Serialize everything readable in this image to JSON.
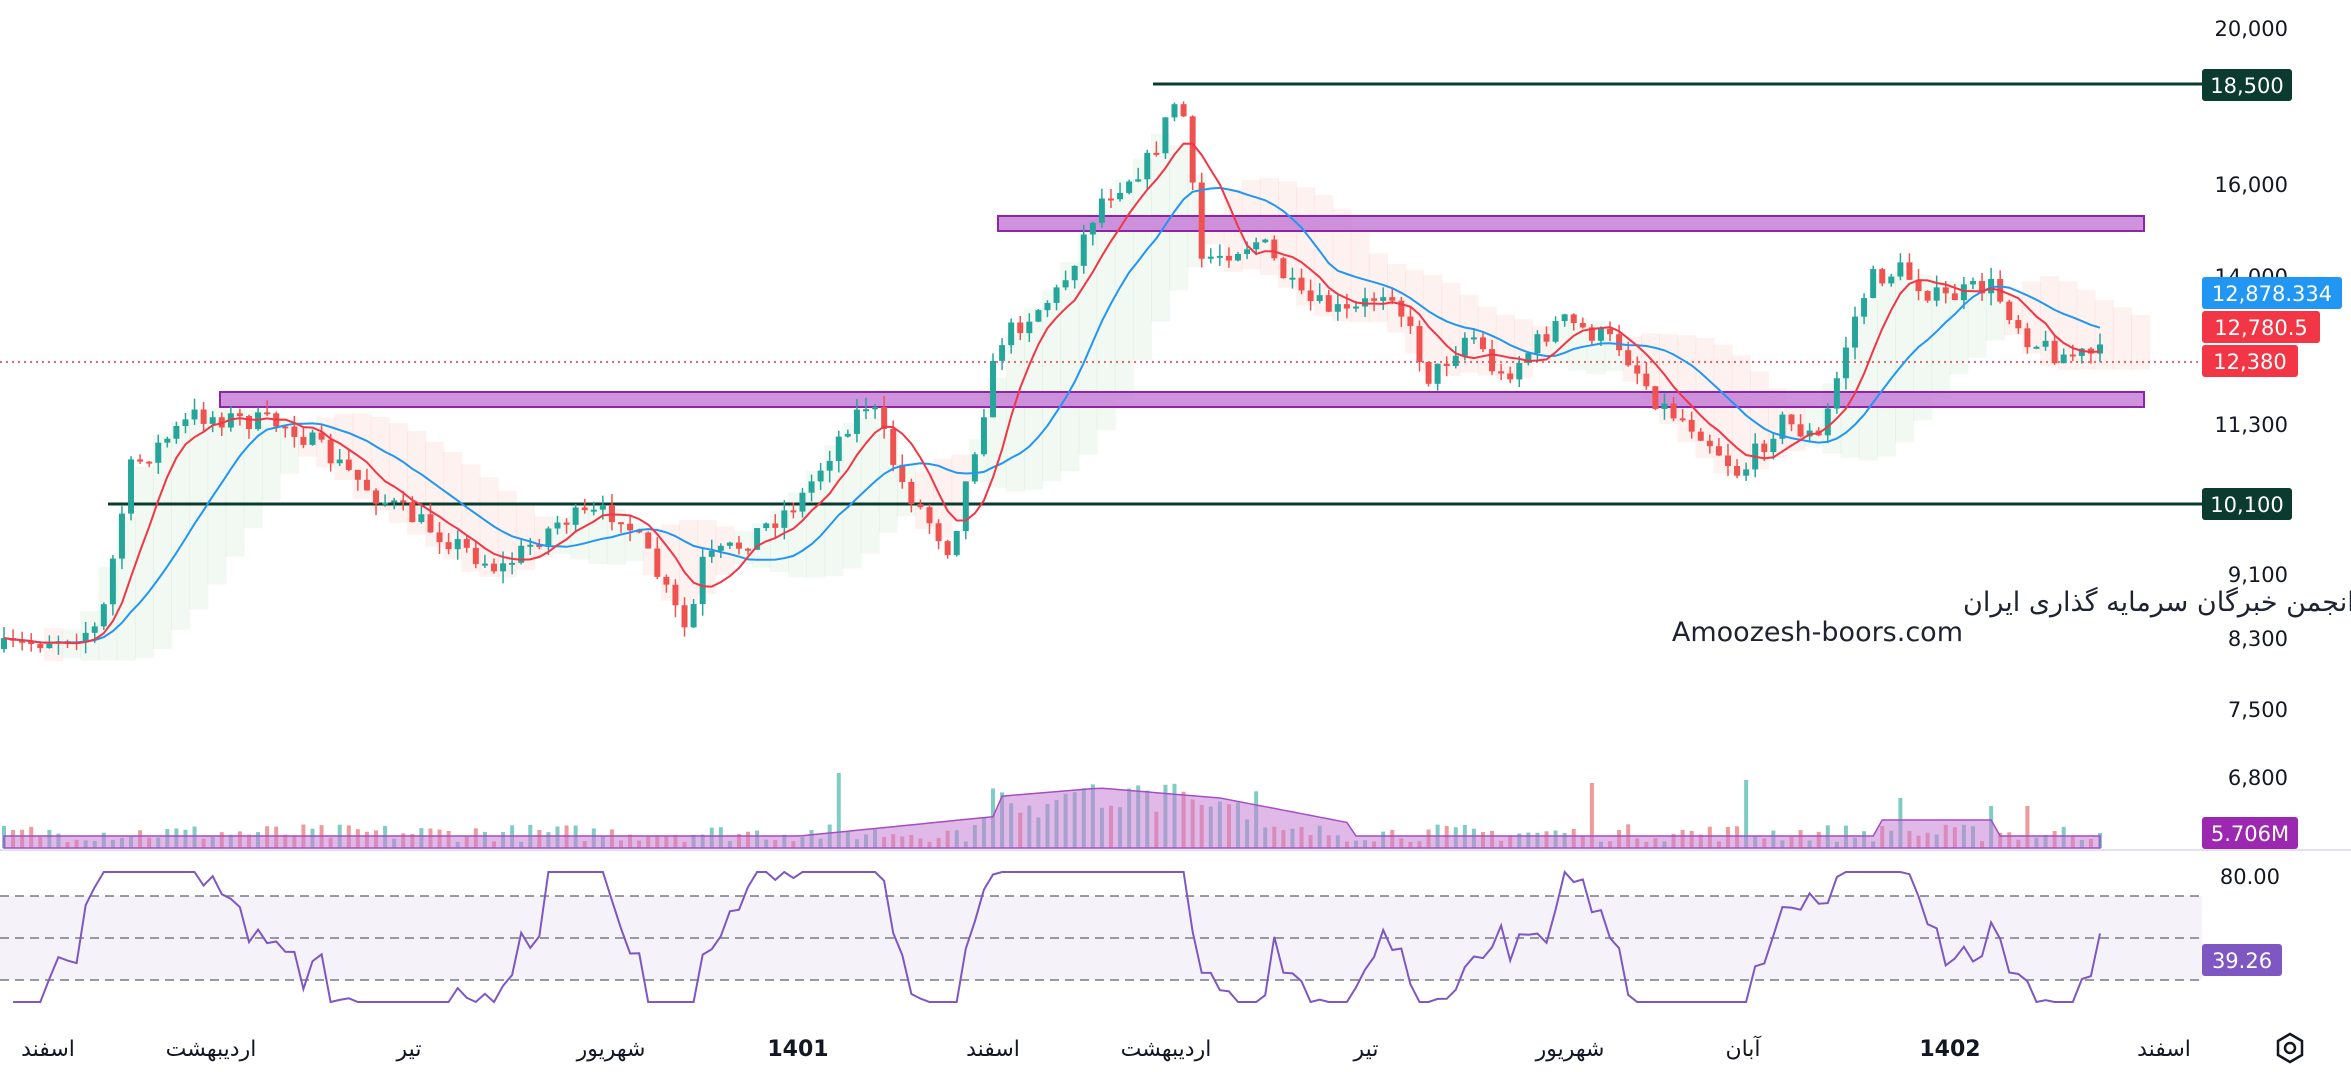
{
  "chart_data": {
    "type": "candlestick",
    "price_axis": {
      "ticks": [
        "20,000",
        "16,000",
        "14,000",
        "11,300",
        "9,100",
        "8,300",
        "7,500",
        "6,800"
      ],
      "scale": "log"
    },
    "price_tags": {
      "resistance_high": "18,500",
      "ma_blue": "12,878.334",
      "ma_red": "12,780.5",
      "last_price": "12,380",
      "support_low": "10,100",
      "volume": "5.706M"
    },
    "horizontal_levels": [
      18500,
      10100
    ],
    "zones": [
      "upper",
      "lower"
    ],
    "time_axis": [
      "اسفند",
      "اردیبهشت",
      "تیر",
      "شهریور",
      "1401",
      "اسفند",
      "اردیبهشت",
      "تیر",
      "شهریور",
      "آبان",
      "1402",
      "اسفند"
    ],
    "rsi": {
      "level_tick": "80.00",
      "value": "39.26",
      "levels": [
        70,
        50,
        30
      ]
    },
    "watermark": {
      "line1": "انجمن خبرگان سرمایه گذاری ایران",
      "line2": "Amoozesh-boors.com"
    },
    "colors": {
      "up": "#26a69a",
      "down": "#ef5350",
      "ma_red": "#f23645",
      "ma_blue": "#2196f3",
      "zone_fill": "#c77fd6",
      "zone_stroke": "#8e24aa",
      "level_line": "#0b3b2e",
      "rsi_line": "#7e57c2",
      "volume_tag": "#9c27b0",
      "blue_tag": "#2196f3",
      "red_tag": "#f23645"
    }
  },
  "toolbar": {
    "settings_icon": "settings-gear-icon"
  }
}
